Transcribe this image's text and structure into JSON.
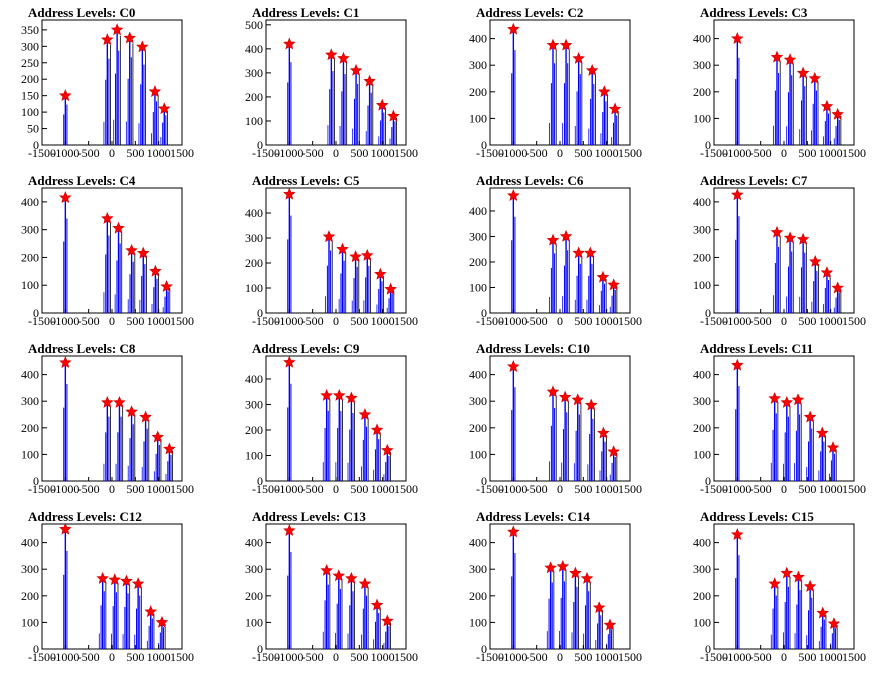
{
  "colors": {
    "histogram": "#0000ff",
    "marker_fill": "#ff0000",
    "marker_stroke": "#cc0000",
    "axis": "#000000"
  },
  "marker_icon": "star-icon",
  "chart_data": [
    {
      "type": "bar",
      "title": "Address Levels: C0",
      "xlim": [
        -1500,
        1500
      ],
      "ylim": [
        0,
        380
      ],
      "yticks": [
        0,
        50,
        100,
        150,
        200,
        250,
        300,
        350
      ],
      "xticks": [
        -1500,
        -1000,
        -500,
        0,
        500,
        1000,
        1500
      ],
      "xticklabels": [
        "-1500",
        "-1000",
        "-500",
        "0",
        "500",
        "1000",
        "1500"
      ],
      "peaks": [
        {
          "x": -1000,
          "y": 150
        },
        {
          "x": -100,
          "y": 320
        },
        {
          "x": 110,
          "y": 350
        },
        {
          "x": 380,
          "y": 325
        },
        {
          "x": 650,
          "y": 298
        },
        {
          "x": 920,
          "y": 162
        },
        {
          "x": 1120,
          "y": 110
        }
      ]
    },
    {
      "type": "bar",
      "title": "Address Levels: C1",
      "xlim": [
        -1500,
        1500
      ],
      "ylim": [
        0,
        520
      ],
      "yticks": [
        0,
        100,
        200,
        300,
        400,
        500
      ],
      "xticks": [
        -1500,
        -1000,
        -500,
        0,
        500,
        1000,
        1500
      ],
      "xticklabels": [
        "-1500",
        "-1000",
        "-500",
        "0",
        "500",
        "1000",
        "1500"
      ],
      "peaks": [
        {
          "x": -1000,
          "y": 420
        },
        {
          "x": -100,
          "y": 375
        },
        {
          "x": 160,
          "y": 360
        },
        {
          "x": 430,
          "y": 310
        },
        {
          "x": 720,
          "y": 265
        },
        {
          "x": 990,
          "y": 165
        },
        {
          "x": 1230,
          "y": 120
        }
      ]
    },
    {
      "type": "bar",
      "title": "Address Levels: C2",
      "xlim": [
        -1500,
        1500
      ],
      "ylim": [
        0,
        470
      ],
      "yticks": [
        0,
        100,
        200,
        300,
        400
      ],
      "xticks": [
        -1500,
        -1000,
        -500,
        0,
        500,
        1000,
        1500
      ],
      "xticklabels": [
        "-1500",
        "-1000",
        "-500",
        "0",
        "500",
        "1000",
        "1500"
      ],
      "peaks": [
        {
          "x": -1000,
          "y": 435
        },
        {
          "x": -150,
          "y": 375
        },
        {
          "x": 130,
          "y": 375
        },
        {
          "x": 400,
          "y": 325
        },
        {
          "x": 690,
          "y": 280
        },
        {
          "x": 950,
          "y": 200
        },
        {
          "x": 1180,
          "y": 135
        }
      ]
    },
    {
      "type": "bar",
      "title": "Address Levels: C3",
      "xlim": [
        -1500,
        1500
      ],
      "ylim": [
        0,
        470
      ],
      "yticks": [
        0,
        100,
        200,
        300,
        400
      ],
      "xticks": [
        -1500,
        -1000,
        -500,
        0,
        500,
        1000,
        1500
      ],
      "xticklabels": [
        "-1500",
        "-1000",
        "-500",
        "0",
        "500",
        "1000",
        "1500"
      ],
      "peaks": [
        {
          "x": -1000,
          "y": 400
        },
        {
          "x": -150,
          "y": 330
        },
        {
          "x": 130,
          "y": 320
        },
        {
          "x": 410,
          "y": 270
        },
        {
          "x": 660,
          "y": 250
        },
        {
          "x": 920,
          "y": 145
        },
        {
          "x": 1150,
          "y": 115
        }
      ]
    },
    {
      "type": "bar",
      "title": "Address Levels: C4",
      "xlim": [
        -1500,
        1500
      ],
      "ylim": [
        0,
        450
      ],
      "yticks": [
        0,
        100,
        200,
        300,
        400
      ],
      "xticks": [
        -1500,
        -1000,
        -500,
        0,
        500,
        1000,
        1500
      ],
      "xticklabels": [
        "-1500",
        "-1000",
        "-500",
        "0",
        "500",
        "1000",
        "1500"
      ],
      "peaks": [
        {
          "x": -1000,
          "y": 415
        },
        {
          "x": -100,
          "y": 340
        },
        {
          "x": 140,
          "y": 305
        },
        {
          "x": 420,
          "y": 225
        },
        {
          "x": 670,
          "y": 215
        },
        {
          "x": 930,
          "y": 150
        },
        {
          "x": 1170,
          "y": 95
        }
      ]
    },
    {
      "type": "bar",
      "title": "Address Levels: C5",
      "xlim": [
        -1500,
        1500
      ],
      "ylim": [
        0,
        500
      ],
      "yticks": [
        0,
        100,
        200,
        300,
        400
      ],
      "xticks": [
        -1500,
        -1000,
        -500,
        0,
        500,
        1000,
        1500
      ],
      "xticklabels": [
        "-1500",
        "-1000",
        "-500",
        "0",
        "500",
        "1000",
        "1500"
      ],
      "peaks": [
        {
          "x": -1000,
          "y": 475
        },
        {
          "x": -150,
          "y": 305
        },
        {
          "x": 140,
          "y": 255
        },
        {
          "x": 420,
          "y": 225
        },
        {
          "x": 670,
          "y": 230
        },
        {
          "x": 950,
          "y": 155
        },
        {
          "x": 1170,
          "y": 95
        }
      ]
    },
    {
      "type": "bar",
      "title": "Address Levels: C6",
      "xlim": [
        -1500,
        1500
      ],
      "ylim": [
        0,
        490
      ],
      "yticks": [
        0,
        100,
        200,
        300,
        400
      ],
      "xticks": [
        -1500,
        -1000,
        -500,
        0,
        500,
        1000,
        1500
      ],
      "xticklabels": [
        "-1500",
        "-1000",
        "-500",
        "0",
        "500",
        "1000",
        "1500"
      ],
      "peaks": [
        {
          "x": -1000,
          "y": 460
        },
        {
          "x": -150,
          "y": 285
        },
        {
          "x": 130,
          "y": 300
        },
        {
          "x": 400,
          "y": 235
        },
        {
          "x": 650,
          "y": 235
        },
        {
          "x": 920,
          "y": 140
        },
        {
          "x": 1150,
          "y": 110
        }
      ]
    },
    {
      "type": "bar",
      "title": "Address Levels: C7",
      "xlim": [
        -1500,
        1500
      ],
      "ylim": [
        0,
        450
      ],
      "yticks": [
        0,
        100,
        200,
        300,
        400
      ],
      "xticks": [
        -1500,
        -1000,
        -500,
        0,
        500,
        1000,
        1500
      ],
      "xticklabels": [
        "-1500",
        "-1000",
        "-500",
        "0",
        "500",
        "1000",
        "1500"
      ],
      "peaks": [
        {
          "x": -1000,
          "y": 425
        },
        {
          "x": -150,
          "y": 290
        },
        {
          "x": 130,
          "y": 270
        },
        {
          "x": 410,
          "y": 265
        },
        {
          "x": 670,
          "y": 185
        },
        {
          "x": 920,
          "y": 145
        },
        {
          "x": 1150,
          "y": 90
        }
      ]
    },
    {
      "type": "bar",
      "title": "Address Levels: C8",
      "xlim": [
        -1500,
        1500
      ],
      "ylim": [
        0,
        470
      ],
      "yticks": [
        0,
        100,
        200,
        300,
        400
      ],
      "xticks": [
        -1500,
        -1000,
        -500,
        0,
        500,
        1000,
        1500
      ],
      "xticklabels": [
        "-1500",
        "-1000",
        "-500",
        "0",
        "500",
        "1000",
        "1500"
      ],
      "peaks": [
        {
          "x": -1000,
          "y": 445
        },
        {
          "x": -100,
          "y": 295
        },
        {
          "x": 160,
          "y": 295
        },
        {
          "x": 420,
          "y": 260
        },
        {
          "x": 720,
          "y": 240
        },
        {
          "x": 980,
          "y": 165
        },
        {
          "x": 1230,
          "y": 120
        }
      ]
    },
    {
      "type": "bar",
      "title": "Address Levels: C9",
      "xlim": [
        -1500,
        1500
      ],
      "ylim": [
        0,
        490
      ],
      "yticks": [
        0,
        100,
        200,
        300,
        400
      ],
      "xticks": [
        -1500,
        -1000,
        -500,
        0,
        500,
        1000,
        1500
      ],
      "xticklabels": [
        "-1500",
        "-1000",
        "-500",
        "0",
        "500",
        "1000",
        "1500"
      ],
      "peaks": [
        {
          "x": -1000,
          "y": 465
        },
        {
          "x": -200,
          "y": 335
        },
        {
          "x": 70,
          "y": 335
        },
        {
          "x": 330,
          "y": 325
        },
        {
          "x": 620,
          "y": 260
        },
        {
          "x": 880,
          "y": 200
        },
        {
          "x": 1100,
          "y": 120
        }
      ]
    },
    {
      "type": "bar",
      "title": "Address Levels: C10",
      "xlim": [
        -1500,
        1500
      ],
      "ylim": [
        0,
        470
      ],
      "yticks": [
        0,
        100,
        200,
        300,
        400
      ],
      "xticks": [
        -1500,
        -1000,
        -500,
        0,
        500,
        1000,
        1500
      ],
      "xticklabels": [
        "-1500",
        "-1000",
        "-500",
        "0",
        "500",
        "1000",
        "1500"
      ],
      "peaks": [
        {
          "x": -1000,
          "y": 430
        },
        {
          "x": -150,
          "y": 335
        },
        {
          "x": 110,
          "y": 315
        },
        {
          "x": 380,
          "y": 305
        },
        {
          "x": 670,
          "y": 285
        },
        {
          "x": 930,
          "y": 180
        },
        {
          "x": 1150,
          "y": 110
        }
      ]
    },
    {
      "type": "bar",
      "title": "Address Levels: C11",
      "xlim": [
        -1500,
        1500
      ],
      "ylim": [
        0,
        470
      ],
      "yticks": [
        0,
        100,
        200,
        300,
        400
      ],
      "xticks": [
        -1500,
        -1000,
        -500,
        0,
        500,
        1000,
        1500
      ],
      "xticklabels": [
        "-1500",
        "-1000",
        "-500",
        "0",
        "500",
        "1000",
        "1500"
      ],
      "peaks": [
        {
          "x": -1000,
          "y": 435
        },
        {
          "x": -200,
          "y": 310
        },
        {
          "x": 60,
          "y": 295
        },
        {
          "x": 300,
          "y": 305
        },
        {
          "x": 560,
          "y": 240
        },
        {
          "x": 820,
          "y": 180
        },
        {
          "x": 1050,
          "y": 125
        }
      ]
    },
    {
      "type": "bar",
      "title": "Address Levels: C12",
      "xlim": [
        -1500,
        1500
      ],
      "ylim": [
        0,
        470
      ],
      "yticks": [
        0,
        100,
        200,
        300,
        400
      ],
      "xticks": [
        -1500,
        -1000,
        -500,
        0,
        500,
        1000,
        1500
      ],
      "xticklabels": [
        "-1500",
        "-1000",
        "-500",
        "0",
        "500",
        "1000",
        "1500"
      ],
      "peaks": [
        {
          "x": -1000,
          "y": 450
        },
        {
          "x": -200,
          "y": 265
        },
        {
          "x": 60,
          "y": 260
        },
        {
          "x": 310,
          "y": 255
        },
        {
          "x": 560,
          "y": 245
        },
        {
          "x": 830,
          "y": 140
        },
        {
          "x": 1070,
          "y": 100
        }
      ]
    },
    {
      "type": "bar",
      "title": "Address Levels: C13",
      "xlim": [
        -1500,
        1500
      ],
      "ylim": [
        0,
        470
      ],
      "yticks": [
        0,
        100,
        200,
        300,
        400
      ],
      "xticks": [
        -1500,
        -1000,
        -500,
        0,
        500,
        1000,
        1500
      ],
      "xticklabels": [
        "-1500",
        "-1000",
        "-500",
        "0",
        "500",
        "1000",
        "1500"
      ],
      "peaks": [
        {
          "x": -1000,
          "y": 445
        },
        {
          "x": -200,
          "y": 295
        },
        {
          "x": 60,
          "y": 275
        },
        {
          "x": 330,
          "y": 265
        },
        {
          "x": 620,
          "y": 245
        },
        {
          "x": 880,
          "y": 165
        },
        {
          "x": 1100,
          "y": 105
        }
      ]
    },
    {
      "type": "bar",
      "title": "Address Levels: C14",
      "xlim": [
        -1500,
        1500
      ],
      "ylim": [
        0,
        470
      ],
      "yticks": [
        0,
        100,
        200,
        300,
        400
      ],
      "xticks": [
        -1500,
        -1000,
        -500,
        0,
        500,
        1000,
        1500
      ],
      "xticklabels": [
        "-1500",
        "-1000",
        "-500",
        "0",
        "500",
        "1000",
        "1500"
      ],
      "peaks": [
        {
          "x": -1000,
          "y": 440
        },
        {
          "x": -200,
          "y": 305
        },
        {
          "x": 60,
          "y": 310
        },
        {
          "x": 330,
          "y": 285
        },
        {
          "x": 580,
          "y": 265
        },
        {
          "x": 840,
          "y": 155
        },
        {
          "x": 1070,
          "y": 90
        }
      ]
    },
    {
      "type": "bar",
      "title": "Address Levels: C15",
      "xlim": [
        -1500,
        1500
      ],
      "ylim": [
        0,
        470
      ],
      "yticks": [
        0,
        100,
        200,
        300,
        400
      ],
      "xticks": [
        -1500,
        -1000,
        -500,
        0,
        500,
        1000,
        1500
      ],
      "xticklabels": [
        "-1500",
        "-1000",
        "-500",
        "0",
        "500",
        "1000",
        "1500"
      ],
      "peaks": [
        {
          "x": -1000,
          "y": 430
        },
        {
          "x": -200,
          "y": 245
        },
        {
          "x": 60,
          "y": 285
        },
        {
          "x": 310,
          "y": 270
        },
        {
          "x": 560,
          "y": 235
        },
        {
          "x": 830,
          "y": 135
        },
        {
          "x": 1070,
          "y": 95
        }
      ]
    }
  ]
}
